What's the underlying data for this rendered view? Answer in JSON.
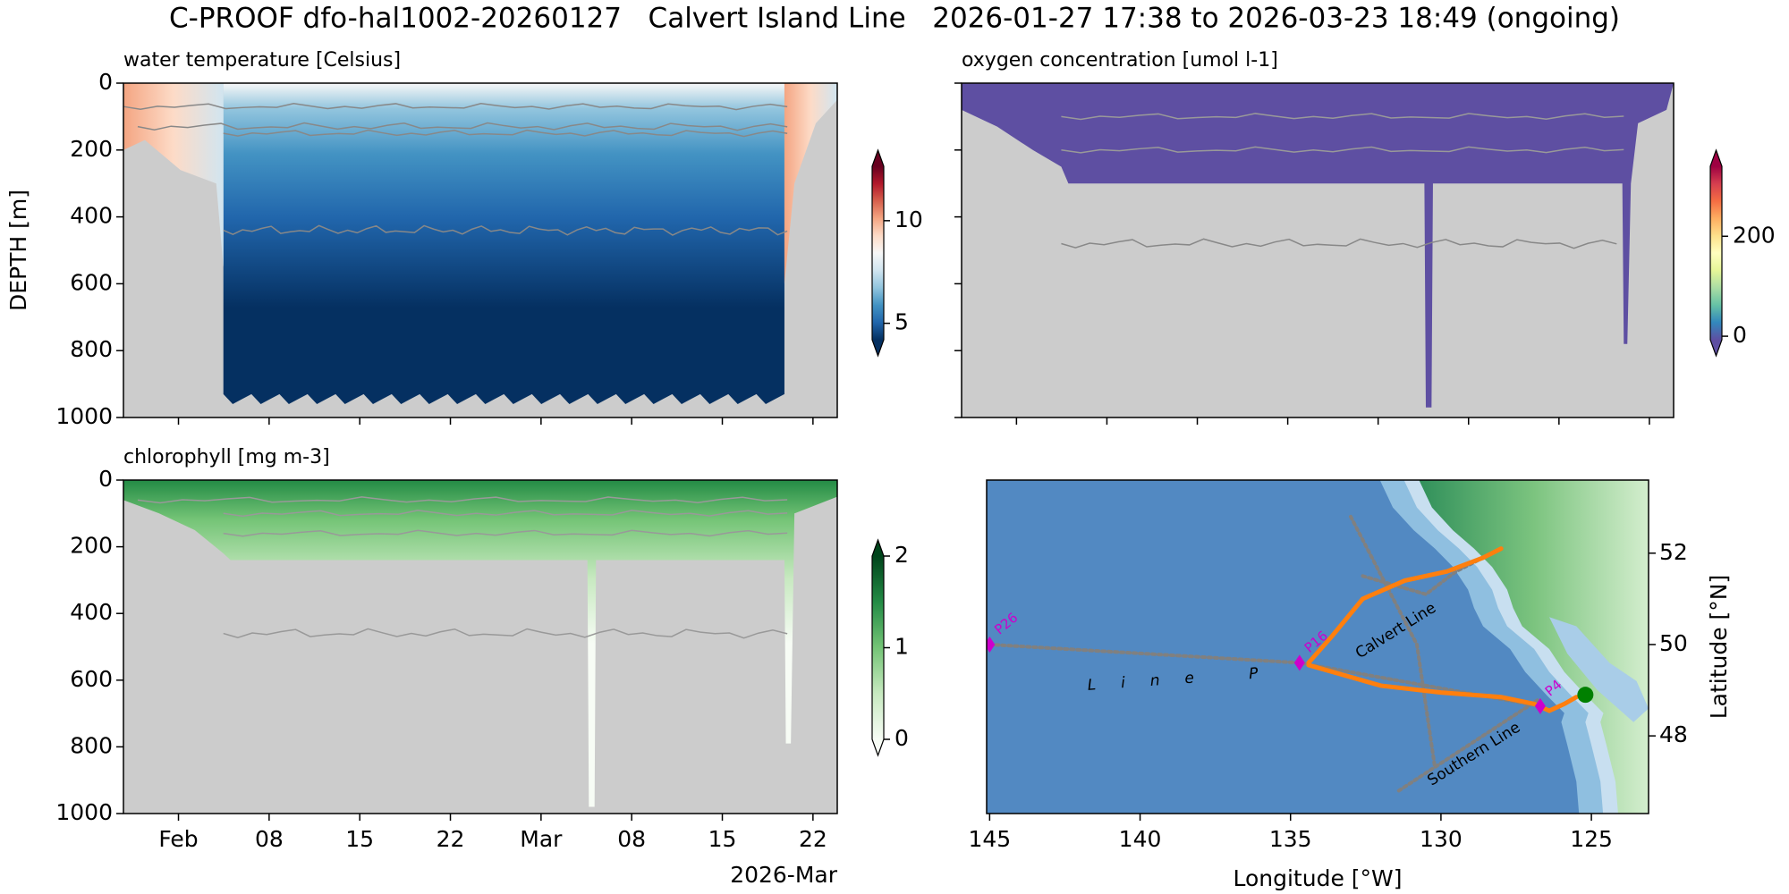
{
  "title": "C-PROOF dfo-hal1002-20260127   Calvert Island Line   2026-01-27 17:38 to 2026-03-23 18:49 (ongoing)",
  "chart_data": [
    {
      "type": "heatmap",
      "title": "water temperature [Celsius]",
      "ylabel": "DEPTH [m]",
      "ylim": [
        0,
        1000
      ],
      "yticks": [
        0,
        200,
        400,
        600,
        800,
        1000
      ],
      "y_inverted": true,
      "xlim": [
        "2026-01-27T18:00",
        "2026-03-23T21:00"
      ],
      "colormap": [
        "#053061",
        "#2166ac",
        "#4393c3",
        "#92c5de",
        "#d1e5f0",
        "#f7f7f7",
        "#fddbc7",
        "#f4a582",
        "#d6604d",
        "#b2182b",
        "#67001f"
      ],
      "colorbar": {
        "ylim": [
          4.2,
          12.65
        ],
        "yticks": [
          5,
          10
        ]
      }
    },
    {
      "type": "heatmap",
      "title": "oxygen concentration [umol l-1]",
      "ylim": [
        0,
        1000
      ],
      "y_inverted": true,
      "xlim": [
        "2026-01-27T18:00",
        "2026-03-23T21:00"
      ],
      "colormap": [
        "#5e4fa2",
        "#3288bd",
        "#66c2a5",
        "#abdda4",
        "#e6f598",
        "#ffffbf",
        "#fee08b",
        "#fdae61",
        "#f46d43",
        "#d53e4f",
        "#9e0142"
      ],
      "colorbar": {
        "ylim": [
          -7,
          340
        ],
        "yticks": [
          0,
          200
        ]
      }
    },
    {
      "type": "heatmap",
      "title": "chlorophyll [mg m-3]",
      "ylim": [
        0,
        1000
      ],
      "yticks": [
        0,
        200,
        400,
        600,
        800,
        1000
      ],
      "y_inverted": true,
      "xlim": [
        "2026-01-27T18:00",
        "2026-03-23T21:00"
      ],
      "xticks": [
        {
          "value": "2026-02-01T00:00",
          "label": "Feb"
        },
        {
          "value": "2026-02-08T00:00",
          "label": "08"
        },
        {
          "value": "2026-02-15T00:00",
          "label": "15"
        },
        {
          "value": "2026-02-22T00:00",
          "label": "22"
        },
        {
          "value": "2026-03-01T00:00",
          "label": "Mar"
        },
        {
          "value": "2026-03-08T00:00",
          "label": "08"
        },
        {
          "value": "2026-03-15T00:00",
          "label": "15"
        },
        {
          "value": "2026-03-22T00:00",
          "label": "22"
        }
      ],
      "x_offset_label": "2026-Mar",
      "colormap": [
        "#f7fcf5",
        "#c7e9c0",
        "#74c476",
        "#238b45",
        "#00441b"
      ],
      "colorbar": {
        "ylim": [
          0,
          2
        ],
        "yticks": [
          0,
          1,
          2
        ]
      }
    },
    {
      "type": "map",
      "xlabel": "Longitude [°W]",
      "ylabel": "Latitude [°N]",
      "xlim": [
        145.1,
        123.1
      ],
      "xticks": [
        145,
        140,
        135,
        130,
        125
      ],
      "ylim": [
        46.3,
        53.6
      ],
      "yticks": [
        48,
        50,
        52
      ],
      "stations": [
        {
          "label": "P26",
          "lon": 145,
          "lat": 50
        },
        {
          "label": "P16",
          "lon": 134.7,
          "lat": 49.6
        },
        {
          "label": "P4",
          "lon": 126.7,
          "lat": 48.65
        }
      ],
      "station_color": "#cc00cc",
      "line_labels": [
        "Line P",
        "Calvert Line",
        "Southern Line"
      ],
      "tracks": [
        {
          "color": "#808080",
          "lon": [
            145,
            134.7,
            126.7
          ],
          "lat": [
            50,
            49.6,
            48.65
          ]
        },
        {
          "color": "#808080",
          "lon": [
            131.4,
            126.75
          ],
          "lat": [
            46.8,
            48.8
          ]
        },
        {
          "color": "#808080",
          "lon": [
            132.6,
            130.5,
            129.5,
            128.6
          ],
          "lat": [
            51.5,
            51.1,
            51.6,
            51.9
          ]
        },
        {
          "color": "#808080",
          "lon": [
            133.0,
            130.8,
            130.2
          ],
          "lat": [
            52.8,
            50.0,
            47.3
          ]
        },
        {
          "color": "#ff7f0e",
          "lon": [
            134.4,
            133.6,
            132.6,
            131.2,
            129.8,
            128.6,
            128.0
          ],
          "lat": [
            49.6,
            50.2,
            51.0,
            51.4,
            51.6,
            51.9,
            52.1
          ]
        },
        {
          "color": "#ff7f0e",
          "lon": [
            134.4,
            132.0,
            130.0,
            128.0,
            126.9,
            126.4,
            125.9,
            125.5
          ],
          "lat": [
            49.55,
            49.1,
            48.95,
            48.85,
            48.7,
            48.55,
            48.7,
            48.85
          ]
        }
      ],
      "glider_position": {
        "lon": 125.2,
        "lat": 48.9,
        "color": "#008000"
      }
    }
  ]
}
